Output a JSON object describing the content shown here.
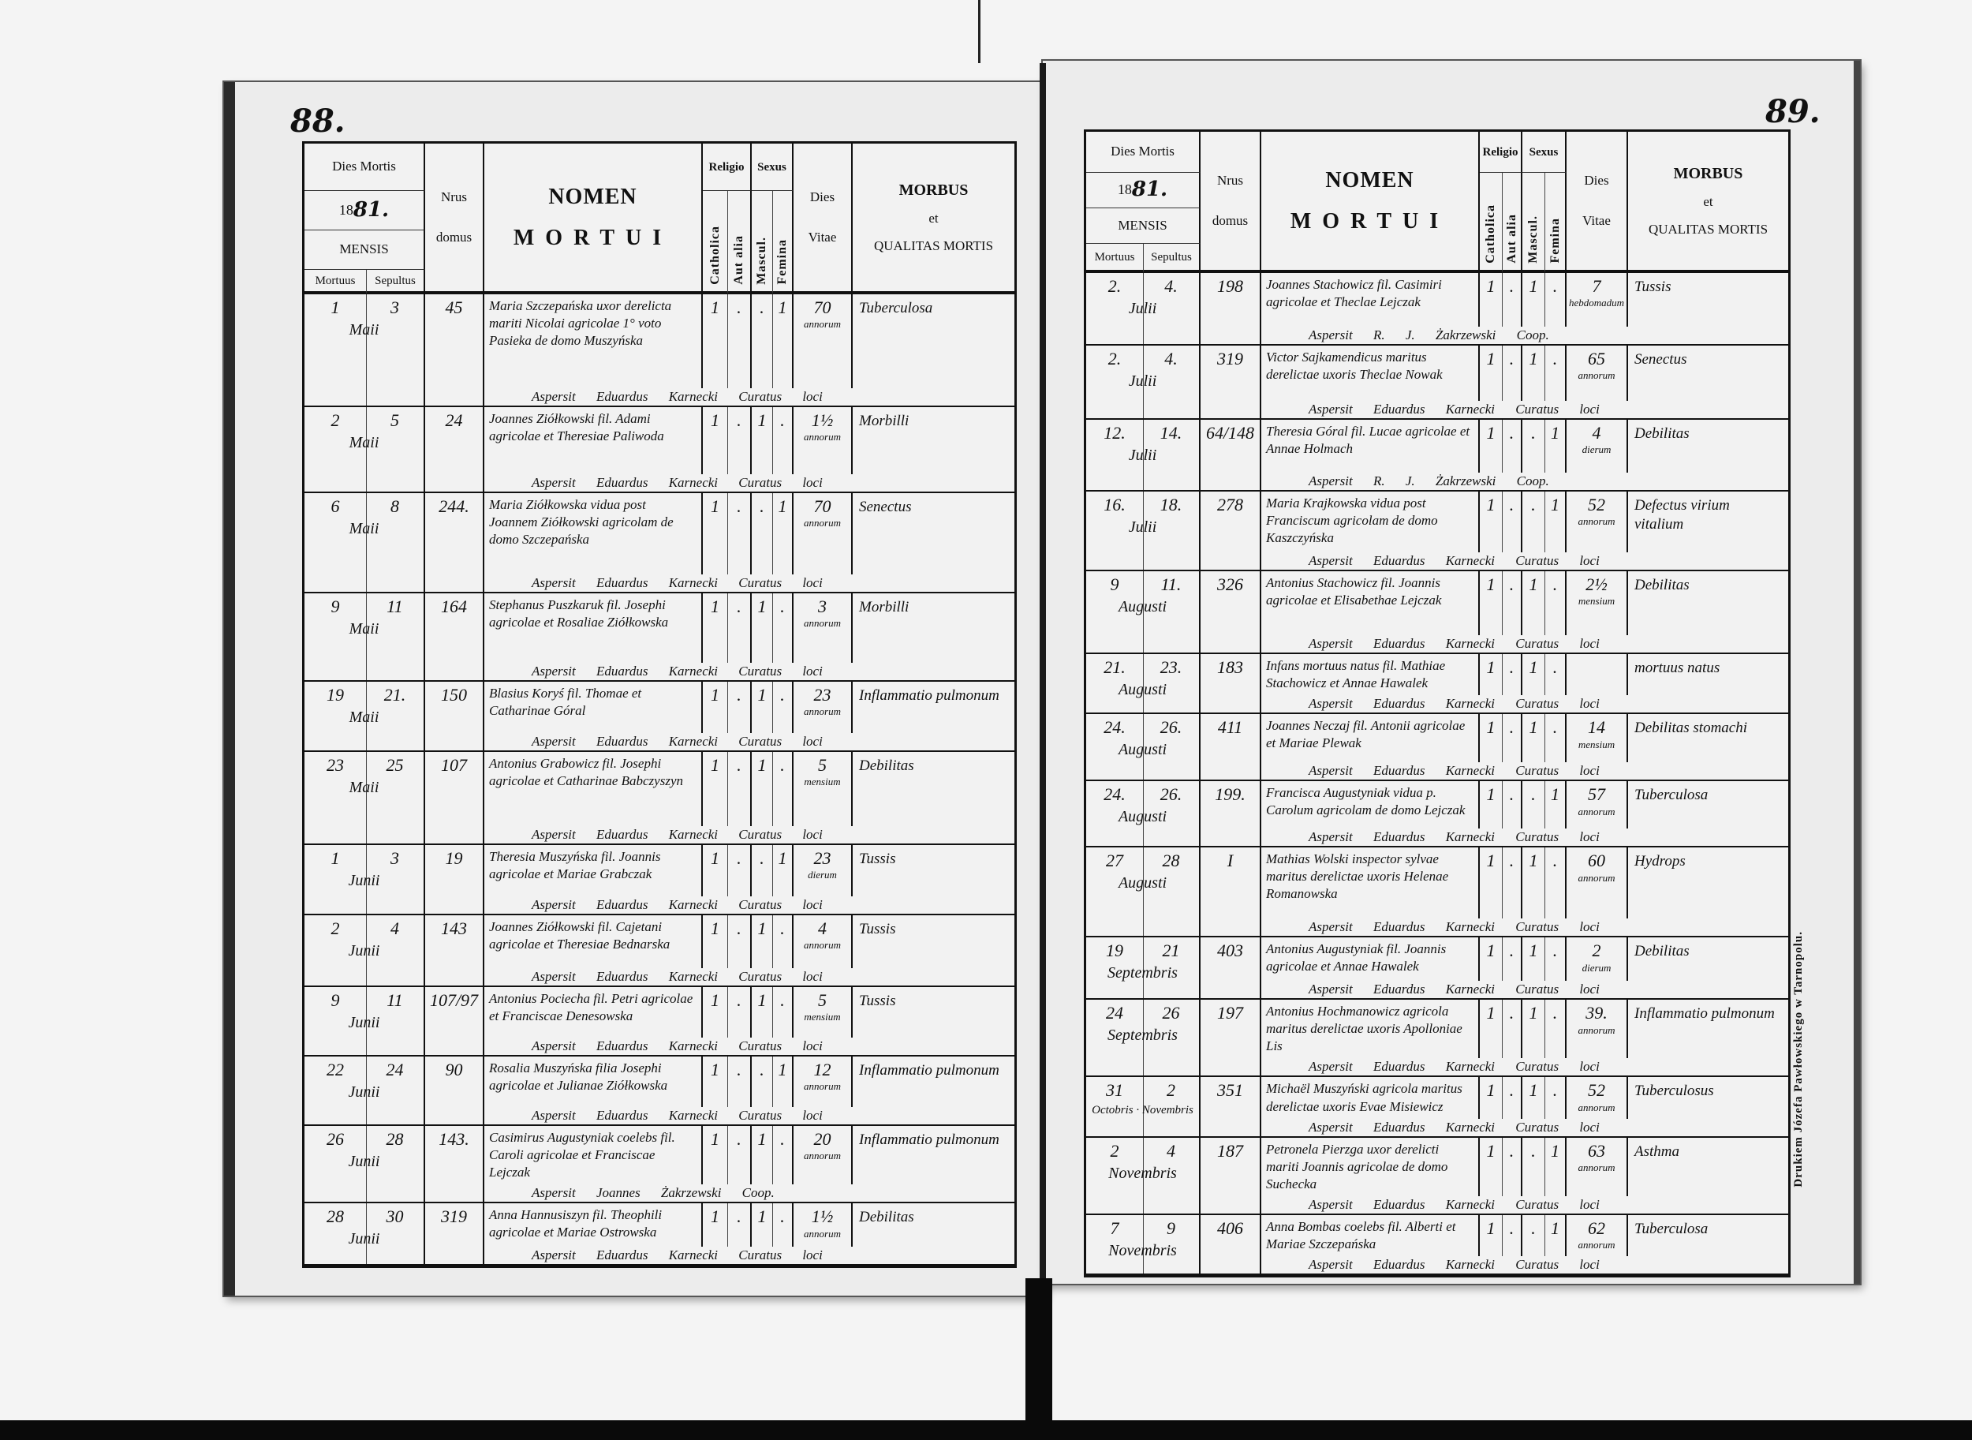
{
  "header": {
    "dies_mortis": "Dies Mortis",
    "year_prefix": "18",
    "year_suffix": "81.",
    "mensis": "MENSIS",
    "mortuus": "Mortuus",
    "sepultus": "Sepultus",
    "nrus": "Nrus",
    "domus": "domus",
    "nomen": "NOMEN",
    "mortui": "MORTUI",
    "religio": "Religio",
    "catholica": "Catholica",
    "aut_alia": "Aut alia",
    "sexus": "Sexus",
    "mascul": "Mascul.",
    "femina": "Femina",
    "dies": "Dies",
    "vitae": "Vitae",
    "morbus": "MORBUS",
    "et": "et",
    "qualitas": "QUALITAS MORTIS"
  },
  "left_page": {
    "page_number": "88.",
    "rows": [
      {
        "mortuus": "1",
        "sepultus": "3",
        "month": "Maii",
        "nrus": "45",
        "nomen": "Maria Szczepańska uxor derelicta mariti Nicolai agricolae 1° voto Pasieka de domo Muszyńska",
        "catholica": "1",
        "aut_alia": ".",
        "mascul": ".",
        "femina": "1",
        "age": "70",
        "age_unit": "annorum",
        "morbus": "Tuberculosa",
        "signature": "Aspersit Eduardus Karnecki Curatus loci"
      },
      {
        "mortuus": "2",
        "sepultus": "5",
        "month": "Maii",
        "nrus": "24",
        "nomen": "Joannes Ziółkowski fil. Adami agricolae et Theresiae Paliwoda",
        "catholica": "1",
        "aut_alia": ".",
        "mascul": "1",
        "femina": ".",
        "age": "1½",
        "age_unit": "annorum",
        "morbus": "Morbilli",
        "signature": "Aspersit Eduardus Karnecki Curatus loci"
      },
      {
        "mortuus": "6",
        "sepultus": "8",
        "month": "Maii",
        "nrus": "244.",
        "nomen": "Maria Ziółkowska vidua post Joannem Ziółkowski agricolam de domo Szczepańska",
        "catholica": "1",
        "aut_alia": ".",
        "mascul": ".",
        "femina": "1",
        "age": "70",
        "age_unit": "annorum",
        "morbus": "Senectus",
        "signature": "Aspersit Eduardus Karnecki Curatus loci"
      },
      {
        "mortuus": "9",
        "sepultus": "11",
        "month": "Maii",
        "nrus": "164",
        "nomen": "Stephanus Puszkaruk fil. Josephi agricolae et Rosaliae Ziółkowska",
        "catholica": "1",
        "aut_alia": ".",
        "mascul": "1",
        "femina": ".",
        "age": "3",
        "age_unit": "annorum",
        "morbus": "Morbilli",
        "signature": "Aspersit Eduardus Karnecki Curatus loci"
      },
      {
        "mortuus": "19",
        "sepultus": "21.",
        "month": "Maii",
        "nrus": "150",
        "nomen": "Blasius Koryś fil. Thomae et Catharinae Góral",
        "catholica": "1",
        "aut_alia": ".",
        "mascul": "1",
        "femina": ".",
        "age": "23",
        "age_unit": "annorum",
        "morbus": "Inflammatio pulmonum",
        "signature": "Aspersit Eduardus Karnecki Curatus loci"
      },
      {
        "mortuus": "23",
        "sepultus": "25",
        "month": "Maii",
        "nrus": "107",
        "nomen": "Antonius Grabowicz fil. Josephi agricolae et Catharinae Babczyszyn",
        "catholica": "1",
        "aut_alia": ".",
        "mascul": "1",
        "femina": ".",
        "age": "5",
        "age_unit": "mensium",
        "morbus": "Debilitas",
        "signature": "Aspersit Eduardus Karnecki Curatus loci"
      },
      {
        "mortuus": "1",
        "sepultus": "3",
        "month": "Junii",
        "nrus": "19",
        "nomen": "Theresia Muszyńska fil. Joannis agricolae et Mariae Grabczak",
        "catholica": "1",
        "aut_alia": ".",
        "mascul": ".",
        "femina": "1",
        "age": "23",
        "age_unit": "dierum",
        "morbus": "Tussis",
        "signature": "Aspersit Eduardus Karnecki Curatus loci"
      },
      {
        "mortuus": "2",
        "sepultus": "4",
        "month": "Junii",
        "nrus": "143",
        "nomen": "Joannes Ziółkowski fil. Cajetani agricolae et Theresiae Bednarska",
        "catholica": "1",
        "aut_alia": ".",
        "mascul": "1",
        "femina": ".",
        "age": "4",
        "age_unit": "annorum",
        "morbus": "Tussis",
        "signature": "Aspersit Eduardus Karnecki Curatus loci"
      },
      {
        "mortuus": "9",
        "sepultus": "11",
        "month": "Junii",
        "nrus": "107/97",
        "nomen": "Antonius Pociecha fil. Petri agricolae et Franciscae Denesowska",
        "catholica": "1",
        "aut_alia": ".",
        "mascul": "1",
        "femina": ".",
        "age": "5",
        "age_unit": "mensium",
        "morbus": "Tussis",
        "signature": "Aspersit Eduardus Karnecki Curatus loci"
      },
      {
        "mortuus": "22",
        "sepultus": "24",
        "month": "Junii",
        "nrus": "90",
        "nomen": "Rosalia Muszyńska filia Josephi agricolae et Julianae Ziółkowska",
        "catholica": "1",
        "aut_alia": ".",
        "mascul": ".",
        "femina": "1",
        "age": "12",
        "age_unit": "annorum",
        "morbus": "Inflammatio pulmonum",
        "signature": "Aspersit Eduardus Karnecki Curatus loci"
      },
      {
        "mortuus": "26",
        "sepultus": "28",
        "month": "Junii",
        "nrus": "143.",
        "nomen": "Casimirus Augustyniak coelebs fil. Caroli agricolae et Franciscae Lejczak",
        "catholica": "1",
        "aut_alia": ".",
        "mascul": "1",
        "femina": ".",
        "age": "20",
        "age_unit": "annorum",
        "morbus": "Inflammatio pulmonum",
        "signature": "Aspersit Joannes Żakrzewski Coop."
      },
      {
        "mortuus": "28",
        "sepultus": "30",
        "month": "Junii",
        "nrus": "319",
        "nomen": "Anna Hannusiszyn fil. Theophili agricolae et Mariae Ostrowska",
        "catholica": "1",
        "aut_alia": ".",
        "mascul": "1",
        "femina": ".",
        "age": "1½",
        "age_unit": "annorum",
        "morbus": "Debilitas",
        "signature": "Aspersit Eduardus Karnecki Curatus loci"
      }
    ]
  },
  "right_page": {
    "page_number": "89.",
    "imprint": "Drukiem Józefa Pawłowskiego w Tarnopolu.",
    "rows": [
      {
        "mortuus": "2.",
        "sepultus": "4.",
        "month": "Julii",
        "nrus": "198",
        "nomen": "Joannes Stachowicz fil. Casimiri agricolae et Theclae Lejczak",
        "catholica": "1",
        "aut_alia": ".",
        "mascul": "1",
        "femina": ".",
        "age": "7",
        "age_unit": "hebdomadum",
        "morbus": "Tussis",
        "signature": "Aspersit R. J. Żakrzewski Coop."
      },
      {
        "mortuus": "2.",
        "sepultus": "4.",
        "month": "Julii",
        "nrus": "319",
        "nomen": "Victor Sajkamendicus maritus derelictae uxoris Theclae Nowak",
        "catholica": "1",
        "aut_alia": ".",
        "mascul": "1",
        "femina": ".",
        "age": "65",
        "age_unit": "annorum",
        "morbus": "Senectus",
        "signature": "Aspersit Eduardus Karnecki Curatus loci"
      },
      {
        "mortuus": "12.",
        "sepultus": "14.",
        "month": "Julii",
        "nrus": "64/148",
        "nomen": "Theresia Góral fil. Lucae agricolae et Annae Holmach",
        "catholica": "1",
        "aut_alia": ".",
        "mascul": ".",
        "femina": "1",
        "age": "4",
        "age_unit": "dierum",
        "morbus": "Debilitas",
        "signature": "Aspersit R. J. Żakrzewski Coop."
      },
      {
        "mortuus": "16.",
        "sepultus": "18.",
        "month": "Julii",
        "nrus": "278",
        "nomen": "Maria Krajkowska vidua post Franciscum agricolam de domo Kaszczyńska",
        "catholica": "1",
        "aut_alia": ".",
        "mascul": ".",
        "femina": "1",
        "age": "52",
        "age_unit": "annorum",
        "morbus": "Defectus virium vitalium",
        "signature": "Aspersit Eduardus Karnecki Curatus loci"
      },
      {
        "mortuus": "9",
        "sepultus": "11.",
        "month": "Augusti",
        "nrus": "326",
        "nomen": "Antonius Stachowicz fil. Joannis agricolae et Elisabethae Lejczak",
        "catholica": "1",
        "aut_alia": ".",
        "mascul": "1",
        "femina": ".",
        "age": "2½",
        "age_unit": "mensium",
        "morbus": "Debilitas",
        "signature": "Aspersit Eduardus Karnecki Curatus loci"
      },
      {
        "mortuus": "21.",
        "sepultus": "23.",
        "month": "Augusti",
        "nrus": "183",
        "nomen": "Infans mortuus natus fil. Mathiae Stachowicz et Annae Hawalek",
        "catholica": "1",
        "aut_alia": ".",
        "mascul": "1",
        "femina": ".",
        "age": "",
        "age_unit": "",
        "morbus": "mortuus natus",
        "signature": "Aspersit Eduardus Karnecki Curatus loci"
      },
      {
        "mortuus": "24.",
        "sepultus": "26.",
        "month": "Augusti",
        "nrus": "411",
        "nomen": "Joannes Neczaj fil. Antonii agricolae et Mariae Plewak",
        "catholica": "1",
        "aut_alia": ".",
        "mascul": "1",
        "femina": ".",
        "age": "14",
        "age_unit": "mensium",
        "morbus": "Debilitas stomachi",
        "signature": "Aspersit Eduardus Karnecki Curatus loci"
      },
      {
        "mortuus": "24.",
        "sepultus": "26.",
        "month": "Augusti",
        "nrus": "199.",
        "nomen": "Francisca Augustyniak vidua p. Carolum agricolam de domo Lejczak",
        "catholica": "1",
        "aut_alia": ".",
        "mascul": ".",
        "femina": "1",
        "age": "57",
        "age_unit": "annorum",
        "morbus": "Tuberculosa",
        "signature": "Aspersit Eduardus Karnecki Curatus loci"
      },
      {
        "mortuus": "27",
        "sepultus": "28",
        "month": "Augusti",
        "nrus": "I",
        "nomen": "Mathias Wolski inspector sylvae maritus derelictae uxoris Helenae Romanowska",
        "catholica": "1",
        "aut_alia": ".",
        "mascul": "1",
        "femina": ".",
        "age": "60",
        "age_unit": "annorum",
        "morbus": "Hydrops",
        "signature": "Aspersit Eduardus Karnecki Curatus loci"
      },
      {
        "mortuus": "19",
        "sepultus": "21",
        "month": "Septembris",
        "nrus": "403",
        "nomen": "Antonius Augustyniak fil. Joannis agricolae et Annae Hawalek",
        "catholica": "1",
        "aut_alia": ".",
        "mascul": "1",
        "femina": ".",
        "age": "2",
        "age_unit": "dierum",
        "morbus": "Debilitas",
        "signature": "Aspersit Eduardus Karnecki Curatus loci"
      },
      {
        "mortuus": "24",
        "sepultus": "26",
        "month": "Septembris",
        "nrus": "197",
        "nomen": "Antonius Hochmanowicz agricola maritus derelictae uxoris Apolloniae Lis",
        "catholica": "1",
        "aut_alia": ".",
        "mascul": "1",
        "femina": ".",
        "age": "39.",
        "age_unit": "annorum",
        "morbus": "Inflammatio pulmonum",
        "signature": "Aspersit Eduardus Karnecki Curatus loci"
      },
      {
        "mortuus": "31",
        "sepultus": "2",
        "month": "Octobris · Novembris",
        "nrus": "351",
        "nomen": "Michaël Muszyński agricola maritus derelictae uxoris Evae Misiewicz",
        "catholica": "1",
        "aut_alia": ".",
        "mascul": "1",
        "femina": ".",
        "age": "52",
        "age_unit": "annorum",
        "morbus": "Tuberculosus",
        "signature": "Aspersit Eduardus Karnecki Curatus loci"
      },
      {
        "mortuus": "2",
        "sepultus": "4",
        "month": "Novembris",
        "nrus": "187",
        "nomen": "Petronela Pierzga uxor derelicti mariti Joannis agricolae de domo Suchecka",
        "catholica": "1",
        "aut_alia": ".",
        "mascul": ".",
        "femina": "1",
        "age": "63",
        "age_unit": "annorum",
        "morbus": "Asthma",
        "signature": "Aspersit Eduardus Karnecki Curatus loci"
      },
      {
        "mortuus": "7",
        "sepultus": "9",
        "month": "Novembris",
        "nrus": "406",
        "nomen": "Anna Bombas coelebs fil. Alberti et Mariae Szczepańska",
        "catholica": "1",
        "aut_alia": ".",
        "mascul": ".",
        "femina": "1",
        "age": "62",
        "age_unit": "annorum",
        "morbus": "Tuberculosa",
        "signature": "Aspersit Eduardus Karnecki Curatus loci"
      }
    ]
  }
}
